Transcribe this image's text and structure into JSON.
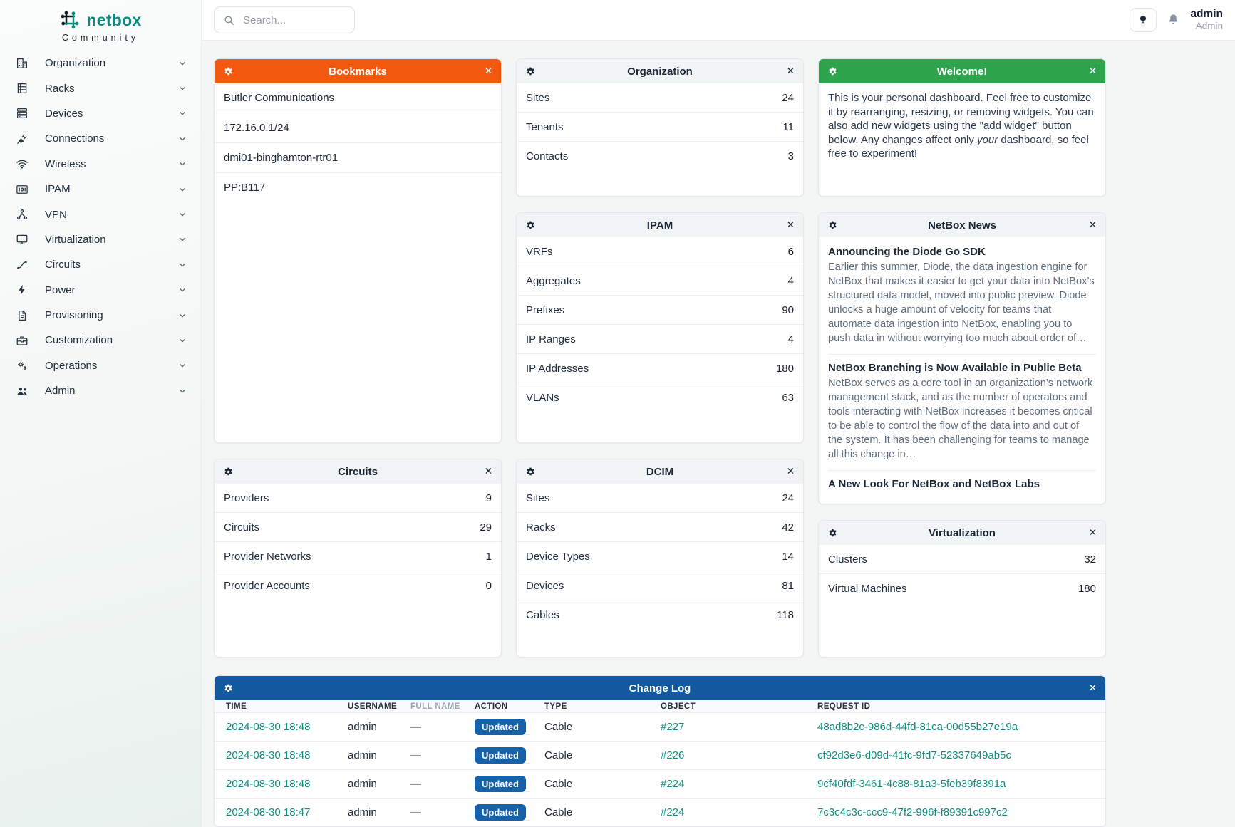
{
  "brand": {
    "name": "netbox",
    "subtitle": "Community",
    "logo_icon": "netbox-logo-icon"
  },
  "colors": {
    "brand_teal": "#0b8a7d",
    "link_teal": "#0e8d80",
    "bookmarks_header_orange": "#f2590f",
    "welcome_header_green": "#2ea44c",
    "changelog_header_blue": "#13599e",
    "action_badge_blue": "#1562ab"
  },
  "topbar": {
    "search_placeholder": "Search...",
    "icons": [
      "search-icon",
      "lightbulb-icon",
      "bell-icon"
    ],
    "user": {
      "username": "admin",
      "role": "Admin"
    }
  },
  "sidebar": {
    "items": [
      {
        "label": "Organization",
        "icon": "building-icon"
      },
      {
        "label": "Racks",
        "icon": "rack-icon"
      },
      {
        "label": "Devices",
        "icon": "server-icon"
      },
      {
        "label": "Connections",
        "icon": "plug-icon"
      },
      {
        "label": "Wireless",
        "icon": "wifi-icon"
      },
      {
        "label": "IPAM",
        "icon": "ip-book-icon"
      },
      {
        "label": "VPN",
        "icon": "network-icon"
      },
      {
        "label": "Virtualization",
        "icon": "monitor-icon"
      },
      {
        "label": "Circuits",
        "icon": "route-icon"
      },
      {
        "label": "Power",
        "icon": "bolt-icon"
      },
      {
        "label": "Provisioning",
        "icon": "document-icon"
      },
      {
        "label": "Customization",
        "icon": "toolbox-icon"
      },
      {
        "label": "Operations",
        "icon": "gears-icon"
      },
      {
        "label": "Admin",
        "icon": "users-icon"
      }
    ]
  },
  "widgets": {
    "bookmarks": {
      "title": "Bookmarks",
      "items": [
        "Butler Communications",
        "172.16.0.1/24",
        "dmi01-binghamton-rtr01",
        "PP:B117"
      ]
    },
    "organization": {
      "title": "Organization",
      "rows": [
        {
          "label": "Sites",
          "value": "24"
        },
        {
          "label": "Tenants",
          "value": "11"
        },
        {
          "label": "Contacts",
          "value": "3"
        }
      ]
    },
    "welcome": {
      "title": "Welcome!",
      "text_before": "This is your personal dashboard. Feel free to customize it by rearranging, resizing, or removing widgets. You can also add new widgets using the \"add widget\" button below. Any changes affect only ",
      "italic_word": "your",
      "text_after": " dashboard, so feel free to experiment!"
    },
    "ipam": {
      "title": "IPAM",
      "rows": [
        {
          "label": "VRFs",
          "value": "6"
        },
        {
          "label": "Aggregates",
          "value": "4"
        },
        {
          "label": "Prefixes",
          "value": "90"
        },
        {
          "label": "IP Ranges",
          "value": "4"
        },
        {
          "label": "IP Addresses",
          "value": "180"
        },
        {
          "label": "VLANs",
          "value": "63"
        }
      ]
    },
    "news": {
      "title": "NetBox News",
      "articles": [
        {
          "title": "Announcing the Diode Go SDK",
          "body": "Earlier this summer, Diode, the data ingestion engine for NetBox that makes it easier to get your data into NetBox’s structured data model, moved into public preview. Diode unlocks a huge amount of velocity for teams that automate data ingestion into NetBox, enabling you to push data in without worrying too much about order of…"
        },
        {
          "title": "NetBox Branching is Now Available in Public Beta",
          "body": "NetBox serves as a core tool in an organization’s network management stack, and as the number of operators and tools interacting with NetBox increases it becomes critical to be able to control the flow of the data into and out of the system. It has been challenging for teams to manage all this change in…"
        },
        {
          "title": "A New Look For NetBox and NetBox Labs",
          "body": ""
        }
      ]
    },
    "circuits": {
      "title": "Circuits",
      "rows": [
        {
          "label": "Providers",
          "value": "9"
        },
        {
          "label": "Circuits",
          "value": "29"
        },
        {
          "label": "Provider Networks",
          "value": "1"
        },
        {
          "label": "Provider Accounts",
          "value": "0"
        }
      ]
    },
    "dcim": {
      "title": "DCIM",
      "rows": [
        {
          "label": "Sites",
          "value": "24"
        },
        {
          "label": "Racks",
          "value": "42"
        },
        {
          "label": "Device Types",
          "value": "14"
        },
        {
          "label": "Devices",
          "value": "81"
        },
        {
          "label": "Cables",
          "value": "118"
        }
      ]
    },
    "virtualization": {
      "title": "Virtualization",
      "rows": [
        {
          "label": "Clusters",
          "value": "32"
        },
        {
          "label": "Virtual Machines",
          "value": "180"
        }
      ]
    },
    "changelog": {
      "title": "Change Log",
      "columns": [
        "Time",
        "Username",
        "Full Name",
        "Action",
        "Type",
        "Object",
        "Request ID"
      ],
      "rows": [
        {
          "time": "2024-08-30 18:48",
          "username": "admin",
          "full_name": "—",
          "action": "Updated",
          "type": "Cable",
          "object": "#227",
          "request_id": "48ad8b2c-986d-44fd-81ca-00d55b27e19a"
        },
        {
          "time": "2024-08-30 18:48",
          "username": "admin",
          "full_name": "—",
          "action": "Updated",
          "type": "Cable",
          "object": "#226",
          "request_id": "cf92d3e6-d09d-41fc-9fd7-52337649ab5c"
        },
        {
          "time": "2024-08-30 18:48",
          "username": "admin",
          "full_name": "—",
          "action": "Updated",
          "type": "Cable",
          "object": "#224",
          "request_id": "9cf40fdf-3461-4c88-81a3-5feb39f8391a"
        },
        {
          "time": "2024-08-30 18:47",
          "username": "admin",
          "full_name": "—",
          "action": "Updated",
          "type": "Cable",
          "object": "#224",
          "request_id": "7c3c4c3c-ccc9-47f2-996f-f89391c997c2"
        }
      ]
    }
  }
}
